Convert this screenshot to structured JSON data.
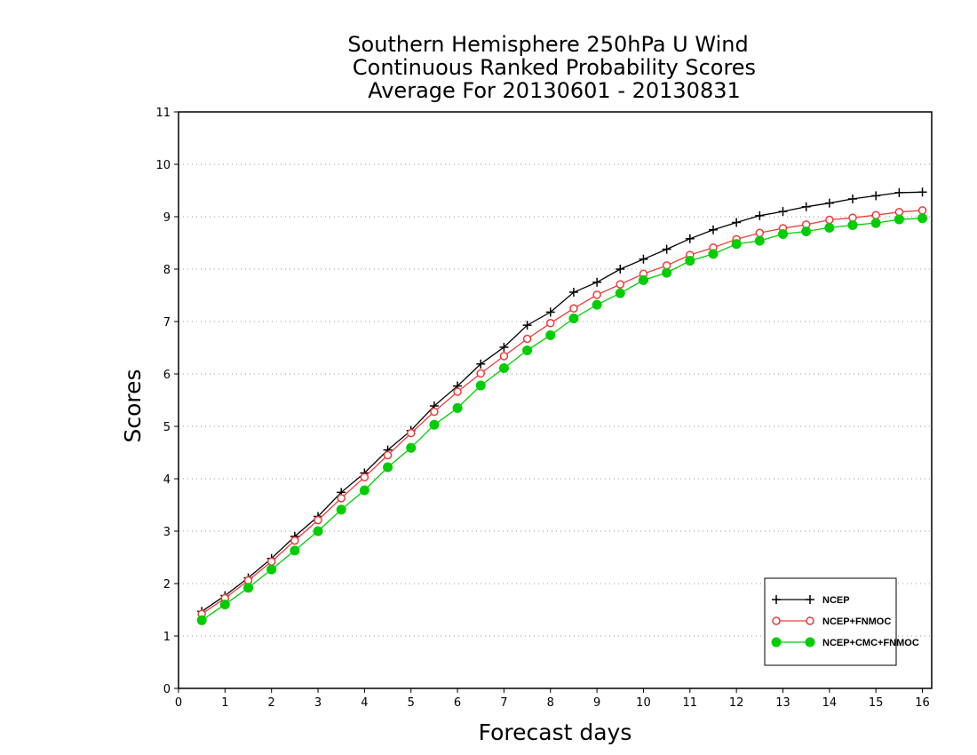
{
  "chart_data": {
    "type": "line",
    "title": [
      "Southern Hemisphere 250hPa U Wind",
      "Continuous Ranked Probability Scores",
      "Average For 20130601 - 20130831"
    ],
    "xlabel": "Forecast days",
    "ylabel": "Scores",
    "xlim": [
      0,
      16.2
    ],
    "ylim": [
      0,
      11
    ],
    "xticks": [
      0,
      1,
      2,
      3,
      4,
      5,
      6,
      7,
      8,
      9,
      10,
      11,
      12,
      13,
      14,
      15,
      16
    ],
    "yticks": [
      0,
      1,
      2,
      3,
      4,
      5,
      6,
      7,
      8,
      9,
      10,
      11
    ],
    "grid": true,
    "legend_position": "bottom-right",
    "x": [
      0.5,
      1,
      1.5,
      2,
      2.5,
      3,
      3.5,
      4,
      4.5,
      5,
      5.5,
      6,
      6.5,
      7,
      7.5,
      8,
      8.5,
      9,
      9.5,
      10,
      10.5,
      11,
      11.5,
      12,
      12.5,
      13,
      13.5,
      14,
      14.5,
      15,
      15.5,
      16
    ],
    "series": [
      {
        "name": "NCEP",
        "color": "#000000",
        "marker": "plus",
        "values": [
          1.47,
          1.77,
          2.11,
          2.48,
          2.9,
          3.28,
          3.74,
          4.11,
          4.55,
          4.92,
          5.39,
          5.77,
          6.19,
          6.51,
          6.93,
          7.18,
          7.56,
          7.75,
          8.0,
          8.19,
          8.38,
          8.58,
          8.75,
          8.89,
          9.02,
          9.1,
          9.19,
          9.26,
          9.34,
          9.4,
          9.46,
          9.47
        ]
      },
      {
        "name": "NCEP+FNMOC",
        "color": "#ee3b3b",
        "marker": "open-circle",
        "values": [
          1.42,
          1.72,
          2.06,
          2.42,
          2.82,
          3.21,
          3.63,
          4.03,
          4.45,
          4.87,
          5.28,
          5.66,
          6.01,
          6.34,
          6.67,
          6.97,
          7.25,
          7.51,
          7.71,
          7.91,
          8.07,
          8.27,
          8.41,
          8.57,
          8.69,
          8.78,
          8.85,
          8.94,
          8.98,
          9.03,
          9.09,
          9.12
        ]
      },
      {
        "name": "NCEP+CMC+FNMOC",
        "color": "#00cd00",
        "marker": "filled-circle",
        "values": [
          1.3,
          1.6,
          1.92,
          2.27,
          2.63,
          3.0,
          3.41,
          3.78,
          4.22,
          4.59,
          5.03,
          5.35,
          5.78,
          6.11,
          6.45,
          6.74,
          7.06,
          7.32,
          7.54,
          7.79,
          7.93,
          8.16,
          8.29,
          8.48,
          8.54,
          8.67,
          8.72,
          8.79,
          8.84,
          8.88,
          8.95,
          8.97
        ]
      }
    ]
  }
}
